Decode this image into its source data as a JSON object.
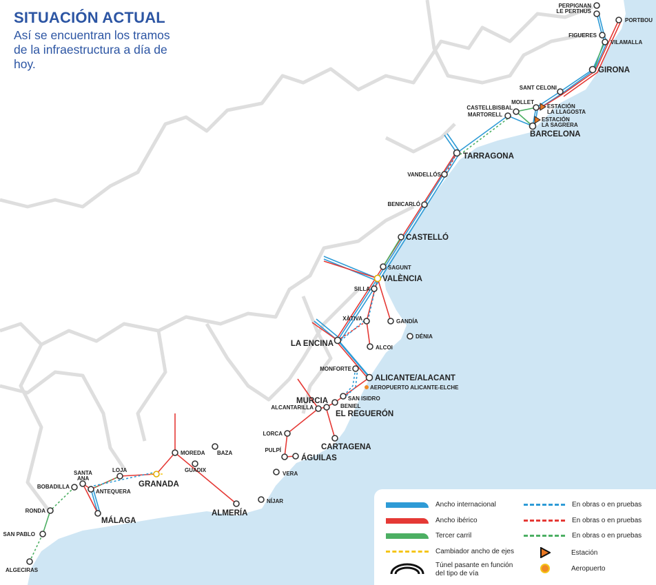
{
  "header": {
    "title": "SITUACIÓN ACTUAL",
    "subtitle": "Así se encuentran los tramos de la infraestructura a día de hoy."
  },
  "colors": {
    "international": "#2e9bd6",
    "iberian": "#e53935",
    "third_rail": "#4caf63",
    "gauge_changer": "#f5c518",
    "station": "#e87722",
    "airport": "#f08a24",
    "sea": "#cfe6f4",
    "title": "#2c55a3"
  },
  "stations": [
    {
      "name": "PERPIGNAN"
    },
    {
      "name": "LE PERTHUS"
    },
    {
      "name": "PORTBOU"
    },
    {
      "name": "FIGUERES"
    },
    {
      "name": "VILAMALLA"
    },
    {
      "name": "GIRONA"
    },
    {
      "name": "SANT CELONI"
    },
    {
      "name": "MOLLET"
    },
    {
      "name": "CASTELLBISBAL"
    },
    {
      "name": "MARTORELL"
    },
    {
      "name": "BARCELONA"
    },
    {
      "name": "TARRAGONA"
    },
    {
      "name": "VANDELLÓS"
    },
    {
      "name": "BENICARLÓ"
    },
    {
      "name": "CASTELLÓ"
    },
    {
      "name": "SAGUNT"
    },
    {
      "name": "VALÈNCIA"
    },
    {
      "name": "SILLA"
    },
    {
      "name": "XÀTIVA"
    },
    {
      "name": "GANDÍA"
    },
    {
      "name": "ALCOI"
    },
    {
      "name": "DÉNIA"
    },
    {
      "name": "LA ENCINA"
    },
    {
      "name": "MONFORTE"
    },
    {
      "name": "ALICANTE/ALACANT"
    },
    {
      "name": "SAN ISIDRO"
    },
    {
      "name": "BENIEL"
    },
    {
      "name": "EL REGUERÓN"
    },
    {
      "name": "MURCIA"
    },
    {
      "name": "ALCANTARILLA"
    },
    {
      "name": "CARTAGENA"
    },
    {
      "name": "LORCA"
    },
    {
      "name": "PULPÍ"
    },
    {
      "name": "ÁGUILAS"
    },
    {
      "name": "VERA"
    },
    {
      "name": "NÍJAR"
    },
    {
      "name": "ALMERÍA"
    },
    {
      "name": "BAZA"
    },
    {
      "name": "MOREDA"
    },
    {
      "name": "GUADIX"
    },
    {
      "name": "GRANADA"
    },
    {
      "name": "LOJA"
    },
    {
      "name": "SANTA"
    },
    {
      "name": "ANA"
    },
    {
      "name": "ANTEQUERA"
    },
    {
      "name": "BOBADILLA"
    },
    {
      "name": "MÁLAGA"
    },
    {
      "name": "RONDA"
    },
    {
      "name": "SAN PABLO"
    },
    {
      "name": "ALGECIRAS"
    }
  ],
  "special": {
    "llagosta": [
      "ESTACIÓN",
      "LA LLAGOSTA"
    ],
    "sagrera": [
      "ESTACIÓN",
      "LA SAGRERA"
    ],
    "airport": "AEROPUERTO ALICANTE-ELCHE"
  },
  "legend": {
    "international": "Ancho internacional",
    "iberian": "Ancho ibérico",
    "third_rail": "Tercer carril",
    "gauge_changer": "Cambiador ancho de ejes",
    "tunnel": [
      "Túnel pasante en función",
      "del tipo de vía"
    ],
    "works_blue": "En obras o en pruebas",
    "works_red": "En obras o en pruebas",
    "works_green": "En obras o en pruebas",
    "station": "Estación",
    "airport": "Aeropuerto"
  }
}
